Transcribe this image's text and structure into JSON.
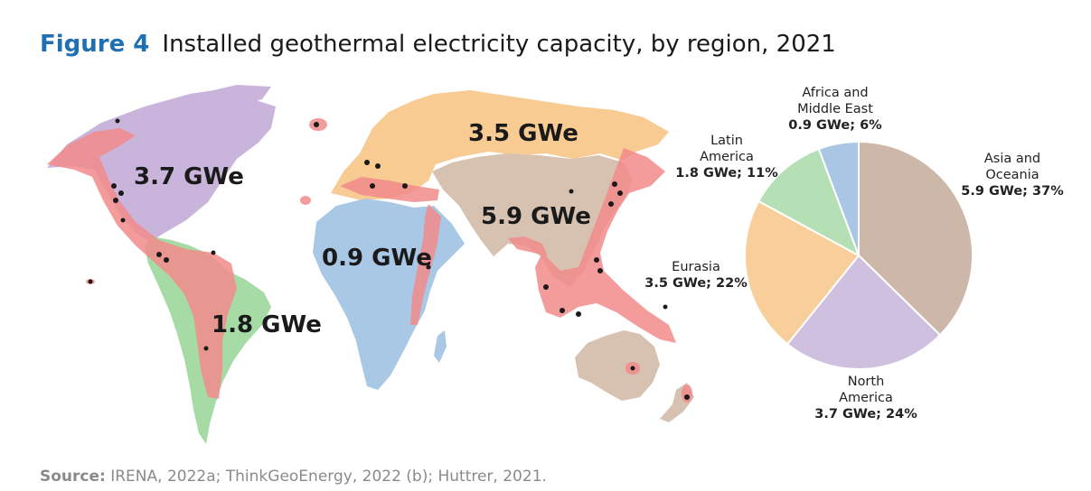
{
  "header": {
    "figure_label": "Figure 4",
    "title": "Installed geothermal electricity capacity, by region, 2021"
  },
  "map": {
    "region_labels": [
      {
        "region": "North America",
        "label": "3.7 GWe",
        "color": "#c9b5dc"
      },
      {
        "region": "Latin America",
        "label": "1.8 GWe",
        "color": "#a6dba6"
      },
      {
        "region": "Eurasia",
        "label": "3.5 GWe",
        "color": "#f8cb93"
      },
      {
        "region": "Africa and Middle East",
        "label": "0.9 GWe",
        "color": "#a8c8e6"
      },
      {
        "region": "Asia and Oceania",
        "label": "5.9 GWe",
        "color": "#d7c1b1"
      }
    ],
    "belt_color": "#f28b8b"
  },
  "chart_data": {
    "type": "pie",
    "unit": "GWe",
    "slices": [
      {
        "name": "Asia and Oceania",
        "lines": [
          "Asia and",
          "Oceania"
        ],
        "value": 5.9,
        "percent": 37,
        "value_label": "5.9 GWe; 37%",
        "color": "#ccb7a8"
      },
      {
        "name": "North America",
        "lines": [
          "North",
          "America"
        ],
        "value": 3.7,
        "percent": 24,
        "value_label": "3.7 GWe; 24%",
        "color": "#cfc0df"
      },
      {
        "name": "Eurasia",
        "lines": [
          "Eurasia"
        ],
        "value": 3.5,
        "percent": 22,
        "value_label": "3.5 GWe; 22%",
        "color": "#f8cf9a"
      },
      {
        "name": "Latin America",
        "lines": [
          "Latin",
          "America"
        ],
        "value": 1.8,
        "percent": 11,
        "value_label": "1.8 GWe; 11%",
        "color": "#b5e0b5"
      },
      {
        "name": "Africa and Middle East",
        "lines": [
          "Africa and",
          "Middle East"
        ],
        "value": 0.9,
        "percent": 6,
        "value_label": "0.9 GWe; 6%",
        "color": "#a9c7e4"
      }
    ]
  },
  "source": {
    "label": "Source:",
    "text": "IRENA, 2022a; ThinkGeoEnergy, 2022 (b); Huttrer, 2021."
  }
}
